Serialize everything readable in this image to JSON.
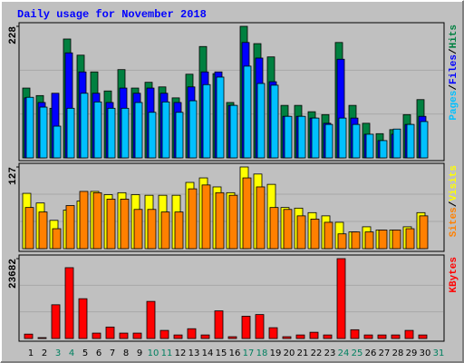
{
  "title": "Daily usage for November 2018",
  "legend_separator": "/",
  "chart_data": [
    {
      "type": "bar",
      "ylim": [
        0,
        228
      ],
      "yticks": [
        228
      ],
      "series": [
        {
          "name": "Hits",
          "color": "#008040",
          "values": [
            121,
            108,
            86,
            206,
            178,
            149,
            116,
            153,
            121,
            131,
            123,
            104,
            145,
            193,
            146,
            96,
            228,
            198,
            175,
            91,
            91,
            80,
            75,
            200,
            91,
            60,
            42,
            49,
            75,
            101,
            null
          ]
        },
        {
          "name": "Files",
          "color": "#0000ff",
          "values": [
            104,
            96,
            112,
            182,
            149,
            112,
            96,
            121,
            112,
            121,
            112,
            96,
            123,
            149,
            149,
            91,
            200,
            173,
            132,
            72,
            72,
            69,
            60,
            171,
            69,
            41,
            30,
            41,
            58,
            72,
            null
          ]
        },
        {
          "name": "Pages",
          "color": "#00c0ff",
          "values": [
            105,
            88,
            55,
            86,
            112,
            97,
            86,
            86,
            96,
            79,
            97,
            79,
            99,
            127,
            140,
            91,
            159,
            129,
            126,
            72,
            72,
            69,
            58,
            69,
            58,
            41,
            30,
            50,
            58,
            63,
            null
          ]
        }
      ]
    },
    {
      "type": "bar",
      "ylim": [
        0,
        127
      ],
      "yticks": [
        127
      ],
      "series": [
        {
          "name": "Visits",
          "color": "#ffff00",
          "values": [
            86,
            71,
            44,
            60,
            74,
            89,
            84,
            87,
            84,
            83,
            83,
            83,
            103,
            110,
            96,
            87,
            127,
            116,
            100,
            64,
            63,
            56,
            51,
            41,
            26,
            34,
            29,
            29,
            34,
            56,
            null
          ]
        },
        {
          "name": "Sites",
          "color": "#ff8000",
          "values": [
            64,
            57,
            31,
            67,
            89,
            87,
            77,
            77,
            61,
            61,
            57,
            57,
            93,
            99,
            87,
            83,
            110,
            96,
            64,
            61,
            51,
            46,
            41,
            23,
            26,
            26,
            29,
            29,
            31,
            51,
            null
          ]
        }
      ]
    },
    {
      "type": "bar",
      "ylim": [
        0,
        23682
      ],
      "yticks": [
        23682
      ],
      "categories": [
        "1",
        "2",
        "3",
        "4",
        "5",
        "6",
        "7",
        "8",
        "9",
        "10",
        "11",
        "12",
        "13",
        "14",
        "15",
        "16",
        "17",
        "18",
        "19",
        "20",
        "21",
        "22",
        "23",
        "24",
        "25",
        "26",
        "27",
        "28",
        "29",
        "30",
        "31"
      ],
      "category_colors": [
        "#000000",
        "#000000",
        "#008060",
        "#008060",
        "#000000",
        "#000000",
        "#000000",
        "#000000",
        "#000000",
        "#008060",
        "#008060",
        "#000000",
        "#000000",
        "#000000",
        "#000000",
        "#000000",
        "#008060",
        "#008060",
        "#000000",
        "#000000",
        "#000000",
        "#000000",
        "#000000",
        "#008060",
        "#008060",
        "#000000",
        "#000000",
        "#000000",
        "#000000",
        "#000000",
        "#008060"
      ],
      "series": [
        {
          "name": "KBytes",
          "color": "#ff0000",
          "values": [
            1300,
            260,
            10000,
            21000,
            11800,
            1600,
            3400,
            1600,
            1600,
            11000,
            2400,
            1050,
            2900,
            1050,
            8200,
            530,
            6600,
            7100,
            3200,
            530,
            1050,
            1850,
            1050,
            23682,
            2600,
            1050,
            1050,
            1050,
            2400,
            1050,
            null
          ]
        }
      ]
    }
  ]
}
